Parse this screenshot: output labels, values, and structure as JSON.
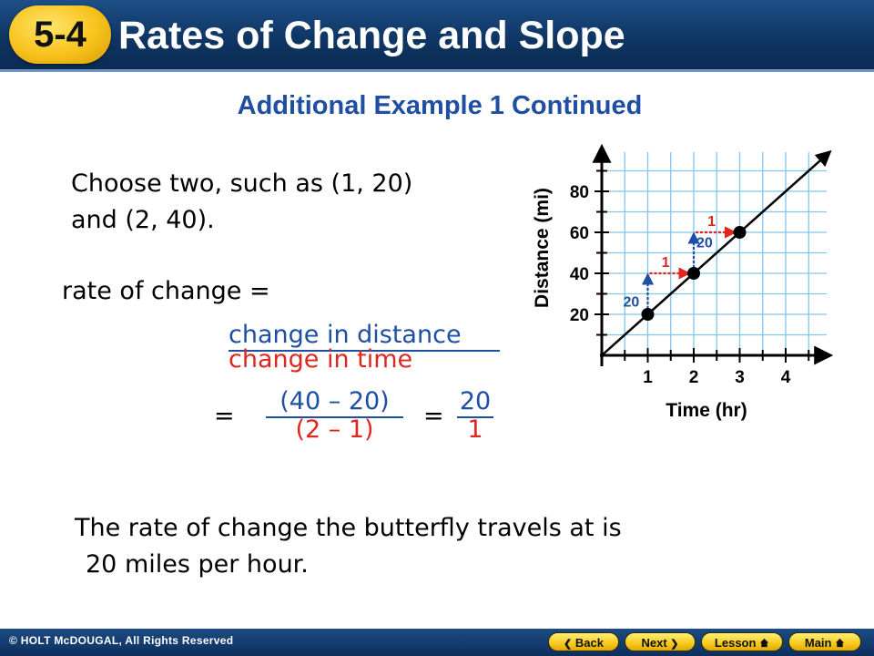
{
  "header": {
    "lesson_number": "5-4",
    "title": "Rates of Change and Slope"
  },
  "slide": {
    "subtitle": "Additional Example 1 Continued",
    "choose_line1": "Choose two, such as (1, 20)",
    "choose_line2": "and (2, 40).",
    "rate_label": "rate of change =",
    "fraction1": {
      "numerator": "change in distance",
      "denominator": "change in time"
    },
    "equals": "=",
    "fraction2": {
      "numerator": "(40 – 20)",
      "denominator": "(2 – 1)"
    },
    "fraction3": {
      "numerator": "20",
      "denominator": "1"
    },
    "conclusion_line1": "The rate of change the butterfly travels at is",
    "conclusion_line2": "20 miles per hour."
  },
  "graph": {
    "x_label": "Time (hr)",
    "y_label": "Distance (mi)",
    "x_ticks": [
      "1",
      "2",
      "3",
      "4"
    ],
    "y_ticks": [
      "20",
      "40",
      "60",
      "80"
    ],
    "rise_labels": [
      "20",
      "20"
    ],
    "run_labels": [
      "1",
      "1"
    ],
    "colors": {
      "grid": "#7fc7ea",
      "rise": "#1e4fa3",
      "run": "#e0261f",
      "line": "#000000"
    }
  },
  "footer": {
    "copyright": "© HOLT McDOUGAL, All Rights Reserved",
    "nav": {
      "back": "Back",
      "next": "Next",
      "lesson": "Lesson",
      "main": "Main"
    }
  },
  "chart_data": {
    "type": "line",
    "xlabel": "Time (hr)",
    "ylabel": "Distance (mi)",
    "x_ticks": [
      1,
      2,
      3,
      4
    ],
    "y_ticks": [
      20,
      40,
      60,
      80
    ],
    "xlim": [
      0,
      5
    ],
    "ylim": [
      0,
      100
    ],
    "grid": true,
    "series": [
      {
        "x": [
          0,
          1,
          2,
          3
        ],
        "values": [
          0,
          20,
          40,
          60
        ]
      }
    ],
    "points": [
      [
        1,
        20
      ],
      [
        2,
        40
      ],
      [
        3,
        60
      ]
    ]
  }
}
